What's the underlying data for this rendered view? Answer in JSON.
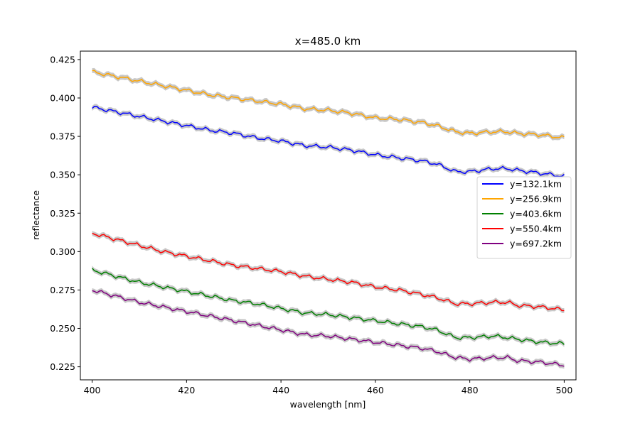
{
  "chart_data": {
    "type": "line",
    "title": "x=485.0 km",
    "xlabel": "wavelength [nm]",
    "ylabel": "reflectance",
    "xlim": [
      397.5,
      502.5
    ],
    "ylim": [
      0.2165,
      0.4305
    ],
    "xticks": [
      400,
      420,
      440,
      460,
      480,
      500
    ],
    "yticks": [
      0.225,
      0.25,
      0.275,
      0.3,
      0.325,
      0.35,
      0.375,
      0.4,
      0.425
    ],
    "grid": false,
    "legend_position": "center-right",
    "band_color": "#c8c8c8",
    "series": [
      {
        "name": "y=132.1km",
        "color": "#0000ff",
        "x": [
          400,
          405,
          410,
          415,
          420,
          425,
          430,
          435,
          440,
          445,
          450,
          455,
          460,
          465,
          470,
          473,
          477,
          480,
          485,
          488,
          490,
          495,
          500
        ],
        "y": [
          0.394,
          0.391,
          0.388,
          0.385,
          0.382,
          0.379,
          0.377,
          0.374,
          0.372,
          0.369,
          0.368,
          0.366,
          0.363,
          0.361,
          0.359,
          0.357,
          0.352,
          0.352,
          0.354,
          0.354,
          0.353,
          0.351,
          0.349
        ]
      },
      {
        "name": "y=256.9km",
        "color": "#ffa500",
        "x": [
          400,
          405,
          410,
          415,
          420,
          425,
          430,
          435,
          440,
          445,
          450,
          455,
          460,
          465,
          470,
          473,
          477,
          480,
          485,
          488,
          490,
          495,
          500
        ],
        "y": [
          0.417,
          0.414,
          0.411,
          0.408,
          0.405,
          0.402,
          0.4,
          0.398,
          0.396,
          0.393,
          0.392,
          0.39,
          0.387,
          0.386,
          0.384,
          0.382,
          0.378,
          0.377,
          0.378,
          0.378,
          0.377,
          0.376,
          0.374
        ]
      },
      {
        "name": "y=403.6km",
        "color": "#008000",
        "x": [
          400,
          405,
          410,
          415,
          420,
          425,
          430,
          435,
          440,
          445,
          450,
          455,
          460,
          465,
          470,
          473,
          477,
          480,
          485,
          488,
          490,
          495,
          500
        ],
        "y": [
          0.288,
          0.284,
          0.28,
          0.277,
          0.274,
          0.271,
          0.268,
          0.266,
          0.263,
          0.26,
          0.259,
          0.257,
          0.255,
          0.253,
          0.251,
          0.249,
          0.244,
          0.244,
          0.245,
          0.244,
          0.243,
          0.241,
          0.24
        ]
      },
      {
        "name": "y=550.4km",
        "color": "#ff0000",
        "x": [
          400,
          405,
          410,
          415,
          420,
          425,
          430,
          435,
          440,
          445,
          450,
          455,
          460,
          465,
          470,
          473,
          477,
          480,
          485,
          488,
          490,
          495,
          500
        ],
        "y": [
          0.312,
          0.308,
          0.304,
          0.3,
          0.297,
          0.294,
          0.291,
          0.289,
          0.287,
          0.284,
          0.282,
          0.28,
          0.277,
          0.275,
          0.272,
          0.27,
          0.266,
          0.266,
          0.267,
          0.267,
          0.265,
          0.264,
          0.262
        ]
      },
      {
        "name": "y=697.2km",
        "color": "#800080",
        "x": [
          400,
          405,
          410,
          415,
          420,
          425,
          430,
          435,
          440,
          445,
          450,
          455,
          460,
          465,
          470,
          473,
          477,
          480,
          485,
          488,
          490,
          495,
          500
        ],
        "y": [
          0.275,
          0.271,
          0.267,
          0.264,
          0.261,
          0.258,
          0.255,
          0.252,
          0.249,
          0.246,
          0.245,
          0.243,
          0.241,
          0.239,
          0.237,
          0.235,
          0.231,
          0.23,
          0.231,
          0.231,
          0.229,
          0.228,
          0.226
        ]
      }
    ]
  }
}
